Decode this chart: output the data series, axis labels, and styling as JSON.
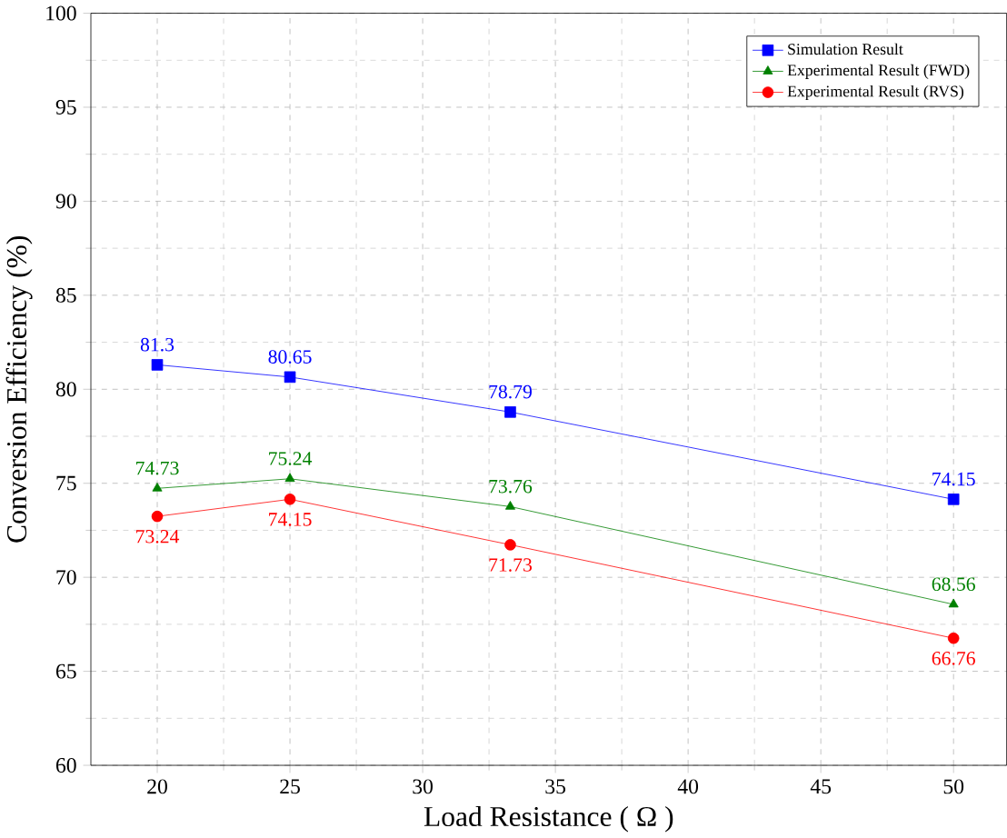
{
  "chart_data": {
    "type": "line",
    "xlabel": "Load Resistance ( Ω )",
    "ylabel": "Conversion Efficiency (%)",
    "xlim": [
      17.5,
      52
    ],
    "xticks": [
      20,
      25,
      30,
      35,
      40,
      45,
      50
    ],
    "ylim": [
      60,
      100
    ],
    "yticks": [
      60,
      65,
      70,
      75,
      80,
      85,
      90,
      95,
      100
    ],
    "grid": true,
    "legend": "top right",
    "data_labels": true,
    "line_style": "solid",
    "series": [
      {
        "name": "Simulation Result",
        "color": "#0000ff",
        "marker": "square",
        "x": [
          20,
          25,
          33.3,
          50
        ],
        "values": [
          81.3,
          80.65,
          78.79,
          74.15
        ]
      },
      {
        "name": "Experimental Result (FWD)",
        "color": "#008000",
        "marker": "triangle",
        "x": [
          20,
          25,
          33.3,
          50
        ],
        "values": [
          74.73,
          75.24,
          73.76,
          68.56
        ]
      },
      {
        "name": "Experimental Result (RVS)",
        "color": "#ff0000",
        "marker": "circle",
        "x": [
          20,
          25,
          33.3,
          50
        ],
        "values": [
          73.24,
          74.15,
          71.73,
          66.76
        ]
      }
    ]
  }
}
